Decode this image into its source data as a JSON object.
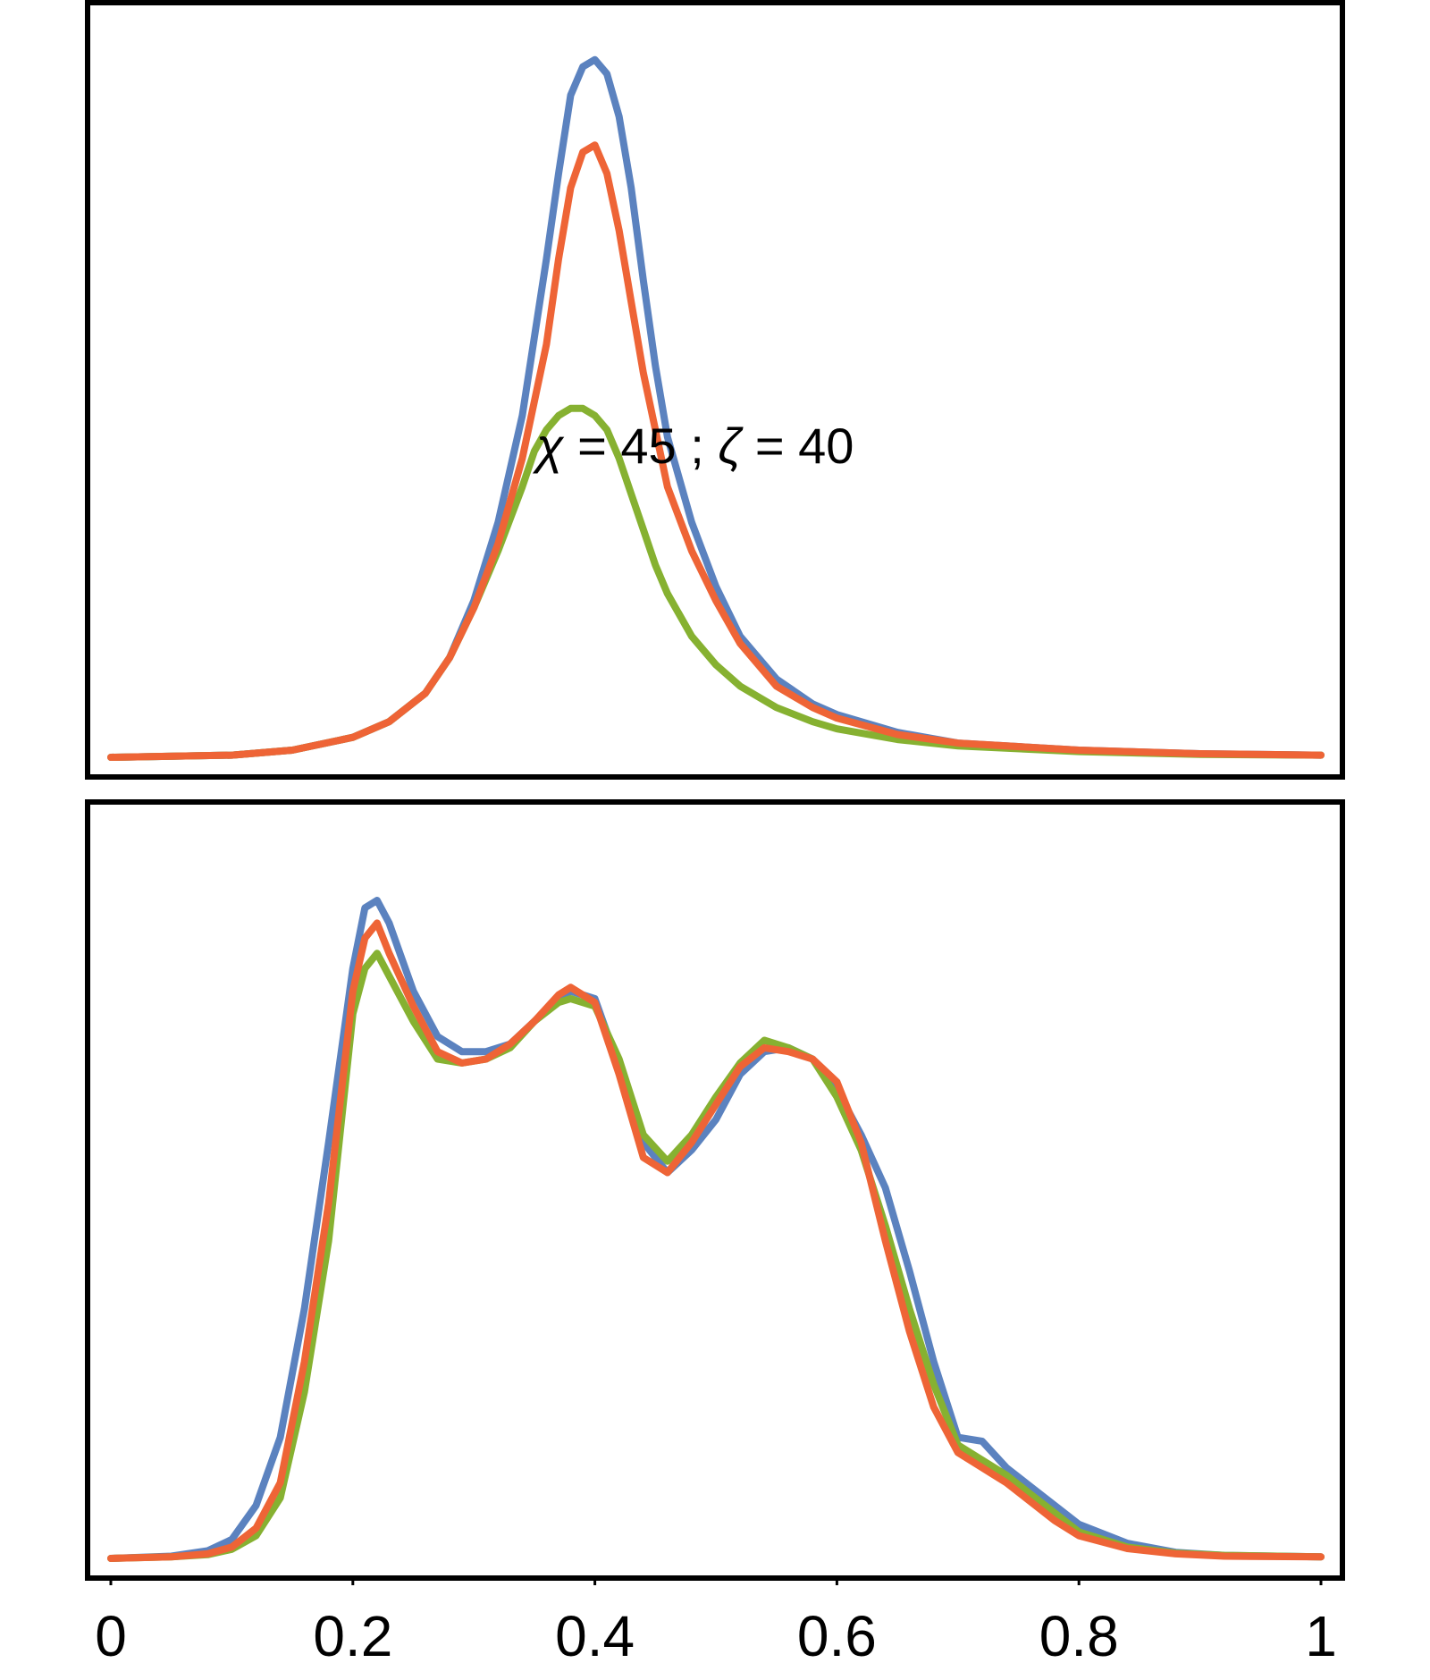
{
  "colors": {
    "blue": "#5b82bf",
    "green": "#86b131",
    "orange": "#ee6436"
  },
  "chart_data": [
    {
      "type": "line",
      "panel": "top",
      "xlim": [
        0,
        1
      ],
      "ylim": [
        0,
        1.06
      ],
      "annotation": {
        "text_sym1": "χ",
        "text_mid": " = 45 ; ",
        "text_sym2": "ζ",
        "text_end": " = 40",
        "x": 0.35,
        "y": 0.42
      },
      "series": [
        {
          "color": "blue",
          "points": [
            [
              0,
              0
            ],
            [
              0.1,
              0.003
            ],
            [
              0.15,
              0.01
            ],
            [
              0.2,
              0.028
            ],
            [
              0.23,
              0.05
            ],
            [
              0.26,
              0.09
            ],
            [
              0.28,
              0.14
            ],
            [
              0.3,
              0.22
            ],
            [
              0.32,
              0.33
            ],
            [
              0.34,
              0.48
            ],
            [
              0.36,
              0.7
            ],
            [
              0.37,
              0.82
            ],
            [
              0.38,
              0.93
            ],
            [
              0.39,
              0.97
            ],
            [
              0.4,
              0.98
            ],
            [
              0.41,
              0.96
            ],
            [
              0.42,
              0.9
            ],
            [
              0.43,
              0.8
            ],
            [
              0.44,
              0.67
            ],
            [
              0.45,
              0.55
            ],
            [
              0.46,
              0.45
            ],
            [
              0.48,
              0.33
            ],
            [
              0.5,
              0.24
            ],
            [
              0.52,
              0.17
            ],
            [
              0.55,
              0.11
            ],
            [
              0.58,
              0.075
            ],
            [
              0.6,
              0.06
            ],
            [
              0.65,
              0.035
            ],
            [
              0.7,
              0.02
            ],
            [
              0.8,
              0.01
            ],
            [
              0.9,
              0.005
            ],
            [
              1,
              0.003
            ]
          ]
        },
        {
          "color": "green",
          "points": [
            [
              0,
              0
            ],
            [
              0.1,
              0.003
            ],
            [
              0.15,
              0.01
            ],
            [
              0.2,
              0.028
            ],
            [
              0.23,
              0.05
            ],
            [
              0.26,
              0.09
            ],
            [
              0.28,
              0.14
            ],
            [
              0.3,
              0.21
            ],
            [
              0.32,
              0.29
            ],
            [
              0.34,
              0.38
            ],
            [
              0.35,
              0.43
            ],
            [
              0.36,
              0.46
            ],
            [
              0.37,
              0.48
            ],
            [
              0.38,
              0.49
            ],
            [
              0.39,
              0.49
            ],
            [
              0.4,
              0.48
            ],
            [
              0.41,
              0.46
            ],
            [
              0.42,
              0.42
            ],
            [
              0.43,
              0.37
            ],
            [
              0.44,
              0.32
            ],
            [
              0.45,
              0.27
            ],
            [
              0.46,
              0.23
            ],
            [
              0.48,
              0.17
            ],
            [
              0.5,
              0.13
            ],
            [
              0.52,
              0.1
            ],
            [
              0.55,
              0.07
            ],
            [
              0.58,
              0.05
            ],
            [
              0.6,
              0.04
            ],
            [
              0.65,
              0.025
            ],
            [
              0.7,
              0.016
            ],
            [
              0.8,
              0.008
            ],
            [
              0.9,
              0.004
            ],
            [
              1,
              0.003
            ]
          ]
        },
        {
          "color": "orange",
          "points": [
            [
              0,
              0
            ],
            [
              0.1,
              0.003
            ],
            [
              0.15,
              0.01
            ],
            [
              0.2,
              0.028
            ],
            [
              0.23,
              0.05
            ],
            [
              0.26,
              0.09
            ],
            [
              0.28,
              0.14
            ],
            [
              0.3,
              0.21
            ],
            [
              0.32,
              0.3
            ],
            [
              0.34,
              0.42
            ],
            [
              0.36,
              0.58
            ],
            [
              0.37,
              0.7
            ],
            [
              0.38,
              0.8
            ],
            [
              0.39,
              0.85
            ],
            [
              0.4,
              0.86
            ],
            [
              0.41,
              0.82
            ],
            [
              0.42,
              0.74
            ],
            [
              0.43,
              0.64
            ],
            [
              0.44,
              0.54
            ],
            [
              0.45,
              0.46
            ],
            [
              0.46,
              0.38
            ],
            [
              0.48,
              0.29
            ],
            [
              0.5,
              0.22
            ],
            [
              0.52,
              0.16
            ],
            [
              0.55,
              0.1
            ],
            [
              0.58,
              0.07
            ],
            [
              0.6,
              0.055
            ],
            [
              0.65,
              0.032
            ],
            [
              0.7,
              0.02
            ],
            [
              0.8,
              0.01
            ],
            [
              0.9,
              0.005
            ],
            [
              1,
              0.003
            ]
          ]
        }
      ]
    },
    {
      "type": "line",
      "panel": "bottom",
      "xlim": [
        0,
        1
      ],
      "ylim": [
        0,
        1.0
      ],
      "xticks": [
        "0",
        "0.2",
        "0.4",
        "0.6",
        "0.8",
        "1"
      ],
      "xtick_values": [
        0,
        0.2,
        0.4,
        0.6,
        0.8,
        1
      ],
      "series": [
        {
          "color": "blue",
          "points": [
            [
              0,
              0
            ],
            [
              0.05,
              0.003
            ],
            [
              0.08,
              0.01
            ],
            [
              0.1,
              0.025
            ],
            [
              0.12,
              0.07
            ],
            [
              0.14,
              0.16
            ],
            [
              0.16,
              0.33
            ],
            [
              0.18,
              0.55
            ],
            [
              0.2,
              0.78
            ],
            [
              0.21,
              0.86
            ],
            [
              0.22,
              0.87
            ],
            [
              0.23,
              0.84
            ],
            [
              0.25,
              0.75
            ],
            [
              0.27,
              0.69
            ],
            [
              0.29,
              0.67
            ],
            [
              0.31,
              0.67
            ],
            [
              0.33,
              0.68
            ],
            [
              0.35,
              0.71
            ],
            [
              0.37,
              0.74
            ],
            [
              0.38,
              0.75
            ],
            [
              0.4,
              0.74
            ],
            [
              0.42,
              0.65
            ],
            [
              0.44,
              0.55
            ],
            [
              0.46,
              0.51
            ],
            [
              0.48,
              0.54
            ],
            [
              0.5,
              0.58
            ],
            [
              0.52,
              0.64
            ],
            [
              0.54,
              0.67
            ],
            [
              0.56,
              0.675
            ],
            [
              0.58,
              0.66
            ],
            [
              0.6,
              0.62
            ],
            [
              0.62,
              0.56
            ],
            [
              0.64,
              0.49
            ],
            [
              0.66,
              0.38
            ],
            [
              0.68,
              0.26
            ],
            [
              0.7,
              0.16
            ],
            [
              0.72,
              0.155
            ],
            [
              0.74,
              0.12
            ],
            [
              0.76,
              0.095
            ],
            [
              0.78,
              0.07
            ],
            [
              0.8,
              0.045
            ],
            [
              0.84,
              0.02
            ],
            [
              0.88,
              0.008
            ],
            [
              0.92,
              0.004
            ],
            [
              1,
              0.002
            ]
          ]
        },
        {
          "color": "green",
          "points": [
            [
              0,
              0
            ],
            [
              0.05,
              0.002
            ],
            [
              0.08,
              0.005
            ],
            [
              0.1,
              0.012
            ],
            [
              0.12,
              0.03
            ],
            [
              0.14,
              0.08
            ],
            [
              0.16,
              0.22
            ],
            [
              0.18,
              0.42
            ],
            [
              0.2,
              0.72
            ],
            [
              0.21,
              0.78
            ],
            [
              0.22,
              0.8
            ],
            [
              0.23,
              0.77
            ],
            [
              0.25,
              0.71
            ],
            [
              0.27,
              0.66
            ],
            [
              0.29,
              0.655
            ],
            [
              0.31,
              0.66
            ],
            [
              0.33,
              0.675
            ],
            [
              0.35,
              0.71
            ],
            [
              0.37,
              0.735
            ],
            [
              0.38,
              0.74
            ],
            [
              0.4,
              0.73
            ],
            [
              0.42,
              0.66
            ],
            [
              0.44,
              0.56
            ],
            [
              0.46,
              0.525
            ],
            [
              0.48,
              0.56
            ],
            [
              0.5,
              0.61
            ],
            [
              0.52,
              0.655
            ],
            [
              0.54,
              0.685
            ],
            [
              0.56,
              0.675
            ],
            [
              0.58,
              0.66
            ],
            [
              0.6,
              0.61
            ],
            [
              0.62,
              0.54
            ],
            [
              0.64,
              0.44
            ],
            [
              0.66,
              0.33
            ],
            [
              0.68,
              0.23
            ],
            [
              0.7,
              0.15
            ],
            [
              0.72,
              0.13
            ],
            [
              0.74,
              0.11
            ],
            [
              0.76,
              0.085
            ],
            [
              0.78,
              0.06
            ],
            [
              0.8,
              0.035
            ],
            [
              0.84,
              0.015
            ],
            [
              0.88,
              0.007
            ],
            [
              0.92,
              0.004
            ],
            [
              1,
              0.002
            ]
          ]
        },
        {
          "color": "orange",
          "points": [
            [
              0,
              0
            ],
            [
              0.05,
              0.002
            ],
            [
              0.08,
              0.006
            ],
            [
              0.1,
              0.015
            ],
            [
              0.12,
              0.04
            ],
            [
              0.14,
              0.1
            ],
            [
              0.16,
              0.26
            ],
            [
              0.18,
              0.47
            ],
            [
              0.2,
              0.75
            ],
            [
              0.21,
              0.82
            ],
            [
              0.22,
              0.84
            ],
            [
              0.23,
              0.8
            ],
            [
              0.25,
              0.73
            ],
            [
              0.27,
              0.67
            ],
            [
              0.29,
              0.655
            ],
            [
              0.31,
              0.66
            ],
            [
              0.33,
              0.68
            ],
            [
              0.35,
              0.71
            ],
            [
              0.37,
              0.745
            ],
            [
              0.38,
              0.755
            ],
            [
              0.4,
              0.735
            ],
            [
              0.42,
              0.64
            ],
            [
              0.44,
              0.53
            ],
            [
              0.46,
              0.51
            ],
            [
              0.48,
              0.55
            ],
            [
              0.5,
              0.6
            ],
            [
              0.52,
              0.65
            ],
            [
              0.54,
              0.675
            ],
            [
              0.56,
              0.67
            ],
            [
              0.58,
              0.66
            ],
            [
              0.6,
              0.63
            ],
            [
              0.62,
              0.55
            ],
            [
              0.64,
              0.42
            ],
            [
              0.66,
              0.3
            ],
            [
              0.68,
              0.2
            ],
            [
              0.7,
              0.14
            ],
            [
              0.72,
              0.12
            ],
            [
              0.74,
              0.1
            ],
            [
              0.76,
              0.075
            ],
            [
              0.78,
              0.05
            ],
            [
              0.8,
              0.03
            ],
            [
              0.84,
              0.013
            ],
            [
              0.88,
              0.006
            ],
            [
              0.92,
              0.003
            ],
            [
              1,
              0.002
            ]
          ]
        }
      ]
    }
  ]
}
